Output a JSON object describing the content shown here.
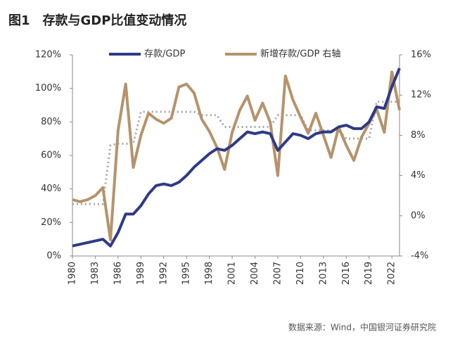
{
  "chart_data": {
    "type": "line",
    "title": "图1　存款与GDP比值变动情况",
    "source": "数据来源：Wind，中国银河证券研究院",
    "x": [
      1980,
      1981,
      1982,
      1983,
      1984,
      1985,
      1986,
      1987,
      1988,
      1989,
      1990,
      1991,
      1992,
      1993,
      1994,
      1995,
      1996,
      1997,
      1998,
      1999,
      2000,
      2001,
      2002,
      2003,
      2004,
      2005,
      2006,
      2007,
      2008,
      2009,
      2010,
      2011,
      2012,
      2013,
      2014,
      2015,
      2016,
      2017,
      2018,
      2019,
      2020,
      2021,
      2022,
      2023
    ],
    "xlim": [
      1980,
      2023
    ],
    "xticks": [
      1980,
      1983,
      1986,
      1989,
      1992,
      1995,
      1998,
      2001,
      2004,
      2007,
      2010,
      2013,
      2016,
      2019,
      2022
    ],
    "ylim": [
      0,
      120
    ],
    "yticks": [
      {
        "value": 0,
        "label": "0%"
      },
      {
        "value": 20,
        "label": "20%"
      },
      {
        "value": 40,
        "label": "40%"
      },
      {
        "value": 60,
        "label": "60%"
      },
      {
        "value": 80,
        "label": "80%"
      },
      {
        "value": 100,
        "label": "100%"
      },
      {
        "value": 120,
        "label": "120%"
      }
    ],
    "y2lim": [
      -4,
      16
    ],
    "y2ticks": [
      {
        "value": -4,
        "label": "-4%"
      },
      {
        "value": 0,
        "label": "0%"
      },
      {
        "value": 4,
        "label": "4%"
      },
      {
        "value": 8,
        "label": "8%"
      },
      {
        "value": 12,
        "label": "12%"
      },
      {
        "value": 16,
        "label": "16%"
      }
    ],
    "series": [
      {
        "name": "存款/GDP",
        "color": "#2e3a87",
        "width": 4,
        "values": [
          6,
          7,
          8,
          9,
          10,
          6,
          14,
          25,
          25,
          30,
          37,
          42,
          43,
          42,
          44,
          48,
          53,
          57,
          61,
          64,
          63,
          66,
          70,
          74,
          73,
          74,
          73,
          63,
          68,
          73,
          72,
          70,
          73,
          74,
          74,
          77,
          78,
          76,
          76,
          80,
          89,
          88,
          101,
          112
        ]
      },
      {
        "name": "新增存款/GDP 右轴",
        "color": "#b5936b",
        "width": 4,
        "axis": "y2",
        "values": [
          1.6,
          1.4,
          1.6,
          2.0,
          2.8,
          -2.4,
          8.5,
          13.1,
          4.8,
          8,
          10.2,
          9.6,
          9.2,
          9.7,
          12.8,
          13.1,
          12.2,
          9.6,
          8.4,
          6.8,
          4.6,
          8.3,
          10.5,
          11.9,
          9.5,
          11.2,
          9.3,
          4.0,
          13.9,
          11.5,
          9.8,
          8.2,
          10.2,
          8,
          5.8,
          8.8,
          7,
          5.5,
          7.8,
          9.2,
          10.6,
          8.3,
          14.3,
          10.5
        ]
      },
      {
        "color": "#a6a6a6",
        "width": 3,
        "dash": "2 4",
        "values": [
          31,
          31,
          31,
          31,
          31,
          66,
          67,
          67,
          67,
          86,
          86,
          86,
          86,
          86,
          86,
          86,
          86,
          84,
          84,
          84,
          77,
          77,
          77,
          77,
          77,
          77,
          77,
          84,
          84,
          84,
          84,
          75,
          75,
          75,
          75,
          75,
          70,
          70,
          70,
          70,
          92,
          92,
          92,
          92
        ]
      }
    ]
  }
}
